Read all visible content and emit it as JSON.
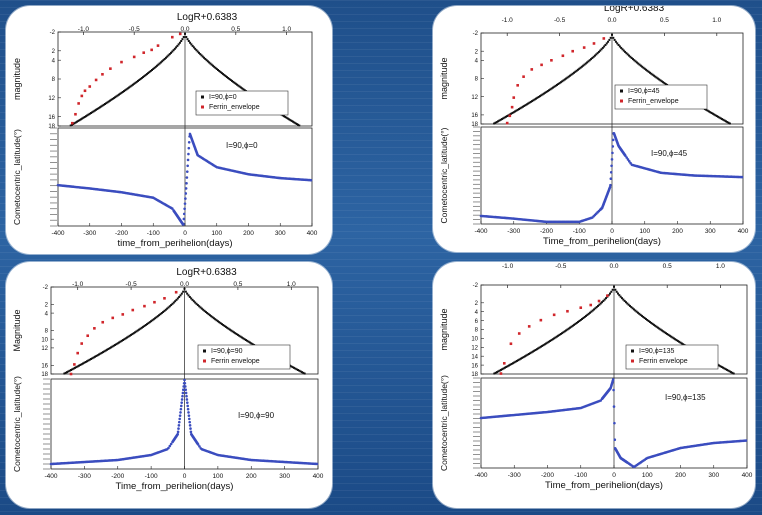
{
  "chart_data": [
    {
      "type": "scatter",
      "panel": "upper-left",
      "top_axis_label": "LogR+0.6383",
      "top_ticks": [
        "-1.0",
        "-0.5",
        "0.0",
        "0.5",
        "1.0"
      ],
      "top_tick_values": [
        -1.0,
        -0.5,
        0.0,
        0.5,
        1.0
      ],
      "magnitude_ylabel": "magnitude",
      "magnitude_ticks": [
        "-2",
        "2",
        "4",
        "8",
        "12",
        "16",
        "18"
      ],
      "magnitude_ylim": [
        -2,
        18
      ],
      "latitude_ylabel": "Cometocentric_latitude(°)",
      "xlabel": "time_from_perihelion(days)",
      "x_ticks": [
        "-400",
        "-300",
        "-200",
        "-100",
        "0",
        "100",
        "200",
        "300",
        "400"
      ],
      "xlim": [
        -400,
        400
      ],
      "legend": [
        "I=90,ϕ=0",
        "Ferrin_envelope"
      ],
      "lower_annotation": "I=90,ϕ=0",
      "lat_samples": [
        [
          -400,
          -15
        ],
        [
          -300,
          -21
        ],
        [
          -200,
          -28
        ],
        [
          -100,
          -38
        ],
        [
          -40,
          -58
        ],
        [
          -5,
          -88
        ],
        [
          5,
          -10
        ],
        [
          15,
          80
        ],
        [
          40,
          40
        ],
        [
          100,
          18
        ],
        [
          200,
          5
        ],
        [
          300,
          -2
        ],
        [
          400,
          -6
        ]
      ],
      "ferrin_points": [
        [
          -355,
          17.4
        ],
        [
          -345,
          15.5
        ],
        [
          -335,
          13.2
        ],
        [
          -325,
          11.6
        ],
        [
          -315,
          10.5
        ],
        [
          -300,
          9.6
        ],
        [
          -280,
          8.2
        ],
        [
          -260,
          7.0
        ],
        [
          -235,
          5.8
        ],
        [
          -200,
          4.4
        ],
        [
          -160,
          3.3
        ],
        [
          -130,
          2.4
        ],
        [
          -105,
          1.8
        ],
        [
          -85,
          0.9
        ],
        [
          -40,
          -0.9
        ],
        [
          -15,
          -1.6
        ]
      ],
      "colors": {
        "model": "#111111",
        "ferrin": "#d0262b",
        "latitude": "#3b4dbf"
      }
    },
    {
      "type": "scatter",
      "panel": "upper-right",
      "top_axis_label": "LogR+0.6383",
      "top_ticks": [
        "-1.0",
        "-0.5",
        "0.0",
        "0.5",
        "1.0"
      ],
      "top_tick_values": [
        -1.0,
        -0.5,
        0.0,
        0.5,
        1.0
      ],
      "magnitude_ylabel": "magnitude",
      "magnitude_ticks": [
        "-2",
        "2",
        "4",
        "8",
        "12",
        "16",
        "18"
      ],
      "magnitude_ylim": [
        -2,
        18
      ],
      "latitude_ylabel": "Cometocentric_latitude(°)",
      "xlabel": "Time_from_perihelion(days)",
      "x_ticks": [
        "-400",
        "-300",
        "-200",
        "-100",
        "0",
        "100",
        "200",
        "300",
        "400"
      ],
      "xlim": [
        -400,
        400
      ],
      "legend": [
        "I=90,ϕ=45",
        "Ferrin_envelope"
      ],
      "lower_annotation": "I=90,ϕ=45",
      "lat_samples": [
        [
          -400,
          -75
        ],
        [
          -300,
          -80
        ],
        [
          -200,
          -86
        ],
        [
          -100,
          -86
        ],
        [
          -60,
          -78
        ],
        [
          -30,
          -60
        ],
        [
          -5,
          -20
        ],
        [
          5,
          80
        ],
        [
          20,
          55
        ],
        [
          60,
          20
        ],
        [
          150,
          5
        ],
        [
          250,
          0
        ],
        [
          400,
          -3
        ]
      ],
      "ferrin_points": [
        [
          -320,
          17.8
        ],
        [
          -312,
          16.2
        ],
        [
          -305,
          14.3
        ],
        [
          -300,
          12.2
        ],
        [
          -288,
          9.5
        ],
        [
          -270,
          7.6
        ],
        [
          -245,
          6.0
        ],
        [
          -215,
          5.0
        ],
        [
          -185,
          4.0
        ],
        [
          -150,
          3.0
        ],
        [
          -120,
          2.0
        ],
        [
          -85,
          1.2
        ],
        [
          -55,
          0.3
        ],
        [
          -25,
          -0.8
        ]
      ],
      "colors": {
        "model": "#111111",
        "ferrin": "#d0262b",
        "latitude": "#3b4dbf"
      }
    },
    {
      "type": "scatter",
      "panel": "lower-left",
      "top_axis_label": "LogR+0.6383",
      "top_ticks": [
        "-1.0",
        "-0.5",
        "0.0",
        "0.5",
        "1.0"
      ],
      "top_tick_values": [
        -1.0,
        -0.5,
        0.0,
        0.5,
        1.0
      ],
      "magnitude_ylabel": "Magnitude",
      "magnitude_ticks": [
        "-2",
        "2",
        "4",
        "8",
        "10",
        "12",
        "16",
        "18"
      ],
      "magnitude_ylim": [
        -2,
        18
      ],
      "latitude_ylabel": "Cometocentric_latitude(°)",
      "xlabel": "Time_from_perihelion(days)",
      "x_ticks": [
        "-400",
        "-300",
        "-200",
        "-100",
        "0",
        "100",
        "200",
        "300",
        "400"
      ],
      "xlim": [
        -400,
        400
      ],
      "legend": [
        "I=90,ϕ=90",
        "Ferrin envelope"
      ],
      "lower_annotation": "I=90,ϕ=90",
      "lat_samples": [
        [
          -400,
          -80
        ],
        [
          -300,
          -76
        ],
        [
          -200,
          -72
        ],
        [
          -100,
          -62
        ],
        [
          -50,
          -50
        ],
        [
          -20,
          -20
        ],
        [
          0,
          88
        ],
        [
          20,
          -20
        ],
        [
          50,
          -50
        ],
        [
          100,
          -62
        ],
        [
          200,
          -72
        ],
        [
          300,
          -76
        ],
        [
          400,
          -80
        ]
      ],
      "ferrin_points": [
        [
          -340,
          18.0
        ],
        [
          -330,
          15.8
        ],
        [
          -320,
          13.2
        ],
        [
          -308,
          11.0
        ],
        [
          -290,
          9.2
        ],
        [
          -270,
          7.5
        ],
        [
          -245,
          6.1
        ],
        [
          -215,
          5.1
        ],
        [
          -185,
          4.3
        ],
        [
          -155,
          3.3
        ],
        [
          -120,
          2.4
        ],
        [
          -90,
          1.5
        ],
        [
          -60,
          0.6
        ],
        [
          -25,
          -0.8
        ]
      ],
      "colors": {
        "model": "#111111",
        "ferrin": "#d0262b",
        "latitude": "#3b4dbf"
      }
    },
    {
      "type": "scatter",
      "panel": "lower-right",
      "top_axis_label": "LogR+0.6383",
      "top_ticks": [
        "-1.0",
        "-0.5",
        "0.0",
        "0.5",
        "1.0"
      ],
      "top_tick_values": [
        -1.0,
        -0.5,
        0.0,
        0.5,
        1.0
      ],
      "magnitude_ylabel": "magnitude",
      "magnitude_ticks": [
        "-2",
        "2",
        "4",
        "6",
        "8",
        "10",
        "12",
        "14",
        "16",
        "18"
      ],
      "magnitude_ylim": [
        -2,
        18
      ],
      "latitude_ylabel": "Cometocentric_latitude(°)",
      "xlabel": "Time_from_perihelion(days)",
      "x_ticks": [
        "-400",
        "-300",
        "-200",
        "-100",
        "0",
        "100",
        "200",
        "300",
        "400"
      ],
      "xlim": [
        -400,
        400
      ],
      "legend": [
        "I=90,ϕ=135",
        "Ferrin envelope"
      ],
      "lower_annotation": "I=90,ϕ=135",
      "lat_samples": [
        [
          -400,
          10
        ],
        [
          -300,
          16
        ],
        [
          -200,
          22
        ],
        [
          -100,
          30
        ],
        [
          -40,
          45
        ],
        [
          -10,
          70
        ],
        [
          -2,
          88
        ],
        [
          3,
          -50
        ],
        [
          20,
          -70
        ],
        [
          60,
          -88
        ],
        [
          100,
          -70
        ],
        [
          200,
          -50
        ],
        [
          300,
          -40
        ],
        [
          400,
          -35
        ]
      ],
      "ferrin_points": [
        [
          -340,
          17.9
        ],
        [
          -330,
          15.6
        ],
        [
          -310,
          11.2
        ],
        [
          -285,
          8.9
        ],
        [
          -255,
          7.3
        ],
        [
          -220,
          5.9
        ],
        [
          -180,
          4.7
        ],
        [
          -140,
          3.9
        ],
        [
          -100,
          3.1
        ],
        [
          -70,
          2.5
        ],
        [
          -45,
          1.6
        ],
        [
          -20,
          0.4
        ]
      ],
      "colors": {
        "model": "#111111",
        "ferrin": "#d0262b",
        "latitude": "#3b4dbf"
      }
    }
  ]
}
